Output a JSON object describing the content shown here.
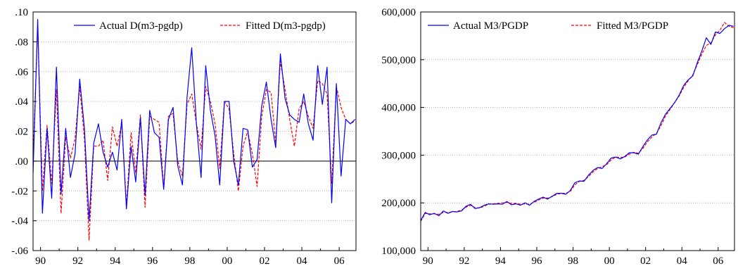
{
  "chart_data": [
    {
      "type": "line",
      "title": "",
      "xlabel": "",
      "ylabel": "",
      "ylim": [
        -0.06,
        0.1
      ],
      "xlim": [
        1989.6,
        2006.9
      ],
      "y_tick_labels": [
        ".10",
        ".08",
        ".06",
        ".04",
        ".02",
        ".00",
        "-.02",
        "-.04",
        "-.06"
      ],
      "y_ticks": [
        0.1,
        0.08,
        0.06,
        0.04,
        0.02,
        0.0,
        -0.02,
        -0.04,
        -0.06
      ],
      "x_tick_labels": [
        "90",
        "92",
        "94",
        "96",
        "98",
        "00",
        "02",
        "04",
        "06"
      ],
      "x_ticks": [
        1990,
        1992,
        1994,
        1996,
        1998,
        2000,
        2002,
        2004,
        2006
      ],
      "grid": true,
      "zero_line": true,
      "legend_position": "top-right",
      "series": [
        {
          "name": "Actual D(m3-pgdp)",
          "color": "#0000ff",
          "dash": "solid",
          "x": [
            1989.6,
            1989.85,
            1990.1,
            1990.35,
            1990.6,
            1990.85,
            1991.1,
            1991.35,
            1991.6,
            1991.85,
            1992.1,
            1992.35,
            1992.6,
            1992.85,
            1993.1,
            1993.35,
            1993.6,
            1993.85,
            1994.1,
            1994.35,
            1994.6,
            1994.85,
            1995.1,
            1995.35,
            1995.6,
            1995.85,
            1996.1,
            1996.35,
            1996.6,
            1996.85,
            1997.1,
            1997.35,
            1997.6,
            1997.85,
            1998.1,
            1998.35,
            1998.6,
            1998.85,
            1999.1,
            1999.35,
            1999.6,
            1999.85,
            2000.1,
            2000.35,
            2000.6,
            2000.85,
            2001.1,
            2001.35,
            2001.6,
            2001.85,
            2002.1,
            2002.35,
            2002.6,
            2002.85,
            2003.1,
            2003.35,
            2003.6,
            2003.85,
            2004.1,
            2004.35,
            2004.6,
            2004.85,
            2005.1,
            2005.35,
            2005.6,
            2005.85,
            2006.1,
            2006.35,
            2006.6,
            2006.85
          ],
          "values": [
            -0.008,
            0.095,
            -0.035,
            0.022,
            -0.025,
            0.063,
            -0.022,
            0.022,
            -0.011,
            0.005,
            0.055,
            0.022,
            -0.04,
            0.012,
            0.025,
            0.006,
            -0.004,
            0.006,
            -0.006,
            0.028,
            -0.032,
            0.01,
            -0.014,
            0.029,
            -0.023,
            0.034,
            0.019,
            0.016,
            -0.019,
            0.028,
            0.036,
            -0.003,
            -0.016,
            0.043,
            0.076,
            0.025,
            -0.011,
            0.064,
            0.034,
            0.017,
            -0.016,
            0.04,
            0.04,
            0.0,
            -0.016,
            0.022,
            0.021,
            -0.004,
            0.001,
            0.037,
            0.053,
            0.028,
            0.009,
            0.072,
            0.042,
            0.031,
            0.028,
            0.026,
            0.045,
            0.025,
            0.014,
            0.064,
            0.038,
            0.063,
            -0.028,
            0.052,
            -0.01,
            0.028,
            0.025,
            0.028
          ]
        },
        {
          "name": "Fitted D(m3-pgdp)",
          "color": "#ff0000",
          "dash": "dashed",
          "x": [
            1989.6,
            1989.85,
            1990.1,
            1990.35,
            1990.6,
            1990.85,
            1991.1,
            1991.35,
            1991.6,
            1991.85,
            1992.1,
            1992.35,
            1992.6,
            1992.85,
            1993.1,
            1993.35,
            1993.6,
            1993.85,
            1994.1,
            1994.35,
            1994.6,
            1994.85,
            1995.1,
            1995.35,
            1995.6,
            1995.85,
            1996.1,
            1996.35,
            1996.6,
            1996.85,
            1997.1,
            1997.35,
            1997.6,
            1997.85,
            1998.1,
            1998.35,
            1998.6,
            1998.85,
            1999.1,
            1999.35,
            1999.6,
            1999.85,
            2000.1,
            2000.35,
            2000.6,
            2000.85,
            2001.1,
            2001.35,
            2001.6,
            2001.85,
            2002.1,
            2002.35,
            2002.6,
            2002.85,
            2003.1,
            2003.35,
            2003.6,
            2003.85,
            2004.1,
            2004.35,
            2004.6,
            2004.85,
            2005.1,
            2005.35,
            2005.6,
            2005.85,
            2006.1,
            2006.35,
            2006.6,
            2006.85
          ],
          "values": [
            0.002,
            0.09,
            -0.02,
            0.024,
            -0.015,
            0.048,
            -0.035,
            0.016,
            0.002,
            0.015,
            0.05,
            0.015,
            -0.053,
            0.01,
            0.01,
            0.014,
            -0.013,
            0.023,
            0.01,
            0.025,
            -0.03,
            0.019,
            -0.008,
            0.031,
            -0.031,
            0.03,
            0.028,
            0.026,
            -0.018,
            0.03,
            0.032,
            0.0,
            -0.01,
            0.038,
            0.045,
            0.025,
            0.008,
            0.05,
            0.04,
            0.025,
            -0.005,
            0.04,
            0.035,
            0.005,
            -0.02,
            0.01,
            0.02,
            0.005,
            -0.017,
            0.03,
            0.048,
            0.046,
            0.012,
            0.067,
            0.048,
            0.028,
            0.01,
            0.035,
            0.04,
            0.03,
            0.022,
            0.054,
            0.052,
            0.045,
            -0.015,
            0.05,
            0.036,
            0.028,
            0.025,
            0.027
          ]
        }
      ]
    },
    {
      "type": "line",
      "title": "",
      "xlabel": "",
      "ylabel": "",
      "ylim": [
        100000,
        600000
      ],
      "xlim": [
        1989.6,
        2006.9
      ],
      "y_tick_labels": [
        "600,000",
        "500,000",
        "400,000",
        "300,000",
        "200,000",
        "100,000"
      ],
      "y_ticks": [
        600000,
        500000,
        400000,
        300000,
        200000,
        100000
      ],
      "x_tick_labels": [
        "90",
        "92",
        "94",
        "96",
        "98",
        "00",
        "02",
        "04",
        "06"
      ],
      "x_ticks": [
        1990,
        1992,
        1994,
        1996,
        1998,
        2000,
        2002,
        2004,
        2006
      ],
      "grid": true,
      "zero_line": false,
      "legend_position": "top-left",
      "series": [
        {
          "name": "Actual M3/PGDP",
          "color": "#0000ff",
          "dash": "solid",
          "x": [
            1989.6,
            1989.85,
            1990.1,
            1990.35,
            1990.6,
            1990.85,
            1991.1,
            1991.35,
            1991.6,
            1991.85,
            1992.1,
            1992.35,
            1992.6,
            1992.85,
            1993.1,
            1993.35,
            1993.6,
            1993.85,
            1994.1,
            1994.35,
            1994.6,
            1994.85,
            1995.1,
            1995.35,
            1995.6,
            1995.85,
            1996.1,
            1996.35,
            1996.6,
            1996.85,
            1997.1,
            1997.35,
            1997.6,
            1997.85,
            1998.1,
            1998.35,
            1998.6,
            1998.85,
            1999.1,
            1999.35,
            1999.6,
            1999.85,
            2000.1,
            2000.35,
            2000.6,
            2000.85,
            2001.1,
            2001.35,
            2001.6,
            2001.85,
            2002.1,
            2002.35,
            2002.6,
            2002.85,
            2003.1,
            2003.35,
            2003.6,
            2003.85,
            2004.1,
            2004.35,
            2004.6,
            2004.85,
            2005.1,
            2005.35,
            2005.6,
            2005.85,
            2006.1,
            2006.35,
            2006.6,
            2006.85
          ],
          "values": [
            163000,
            180000,
            175000,
            178000,
            173000,
            183000,
            178000,
            182000,
            181000,
            183000,
            193000,
            197000,
            188000,
            190000,
            195000,
            198000,
            197000,
            198000,
            197000,
            203000,
            196000,
            198000,
            195000,
            200000,
            195000,
            203000,
            208000,
            212000,
            208000,
            214000,
            220000,
            220000,
            218000,
            226000,
            242000,
            246000,
            245000,
            258000,
            268000,
            274000,
            272000,
            282000,
            294000,
            296000,
            292000,
            297000,
            305000,
            305000,
            302000,
            318000,
            332000,
            342000,
            344000,
            368000,
            386000,
            398000,
            410000,
            426000,
            446000,
            458000,
            466000,
            494000,
            518000,
            546000,
            532000,
            558000,
            555000,
            565000,
            572000,
            570000
          ]
        },
        {
          "name": "Fitted M3/PGDP",
          "color": "#ff0000",
          "dash": "dashed",
          "x": [
            1989.6,
            1989.85,
            1990.1,
            1990.35,
            1990.6,
            1990.85,
            1991.1,
            1991.35,
            1991.6,
            1991.85,
            1992.1,
            1992.35,
            1992.6,
            1992.85,
            1993.1,
            1993.35,
            1993.6,
            1993.85,
            1994.1,
            1994.35,
            1994.6,
            1994.85,
            1995.1,
            1995.35,
            1995.6,
            1995.85,
            1996.1,
            1996.35,
            1996.6,
            1996.85,
            1997.1,
            1997.35,
            1997.6,
            1997.85,
            1998.1,
            1998.35,
            1998.6,
            1998.85,
            1999.1,
            1999.35,
            1999.6,
            1999.85,
            2000.1,
            2000.35,
            2000.6,
            2000.85,
            2001.1,
            2001.35,
            2001.6,
            2001.85,
            2002.1,
            2002.35,
            2002.6,
            2002.85,
            2003.1,
            2003.35,
            2003.6,
            2003.85,
            2004.1,
            2004.35,
            2004.6,
            2004.85,
            2005.1,
            2005.35,
            2005.6,
            2005.85,
            2006.1,
            2006.35,
            2006.6,
            2006.85
          ],
          "values": [
            161000,
            178000,
            177000,
            177000,
            176000,
            180000,
            180000,
            181000,
            182000,
            185000,
            191000,
            195000,
            190000,
            189000,
            193000,
            197000,
            198000,
            199000,
            200000,
            201000,
            199000,
            199000,
            197000,
            198000,
            197000,
            201000,
            206000,
            210000,
            210000,
            213000,
            218000,
            220000,
            220000,
            224000,
            238000,
            245000,
            247000,
            255000,
            265000,
            272000,
            276000,
            280000,
            290000,
            296000,
            295000,
            296000,
            302000,
            306000,
            304000,
            314000,
            328000,
            338000,
            346000,
            362000,
            382000,
            396000,
            410000,
            424000,
            442000,
            456000,
            468000,
            490000,
            512000,
            530000,
            535000,
            552000,
            562000,
            578000,
            570000,
            567000
          ]
        }
      ]
    }
  ]
}
